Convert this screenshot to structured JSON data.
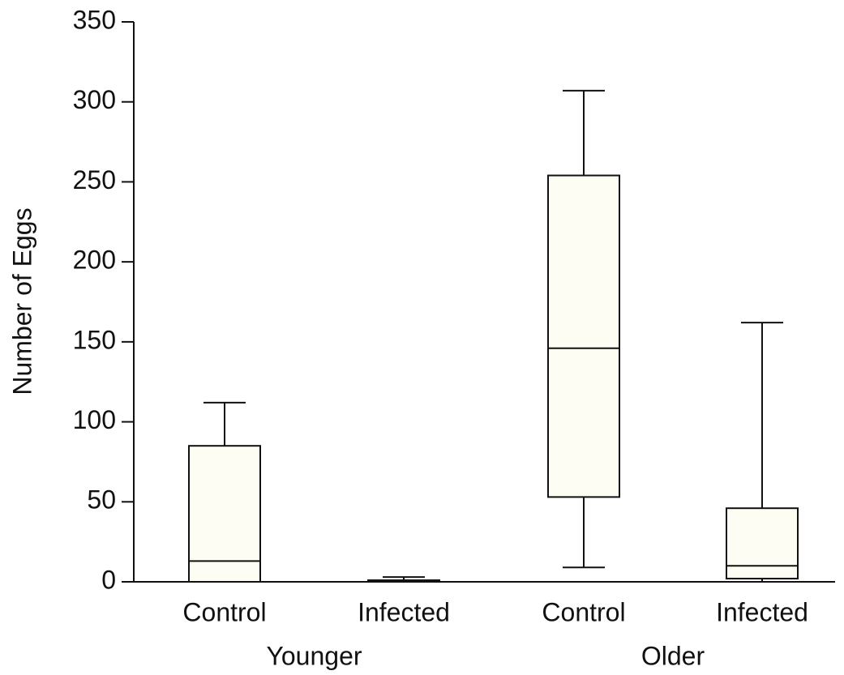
{
  "chart_data": {
    "type": "box",
    "y_label": "Number of Eggs",
    "ylim": [
      0,
      350
    ],
    "yticks": [
      0,
      50,
      100,
      150,
      200,
      250,
      300,
      350
    ],
    "box_color": "#fdfdf3",
    "line_color": "#111111",
    "groups": [
      {
        "name": "Younger",
        "categories": [
          "Control",
          "Infected"
        ],
        "boxes": [
          {
            "min": 0,
            "q1": 0,
            "median": 13,
            "q3": 85,
            "max": 112
          },
          {
            "min": 0,
            "q1": 0,
            "median": 0,
            "q3": 1,
            "max": 3
          }
        ]
      },
      {
        "name": "Older",
        "categories": [
          "Control",
          "Infected"
        ],
        "boxes": [
          {
            "min": 9,
            "q1": 53,
            "median": 146,
            "q3": 254,
            "max": 307
          },
          {
            "min": 0,
            "q1": 2,
            "median": 10,
            "q3": 46,
            "max": 162
          }
        ]
      }
    ]
  }
}
